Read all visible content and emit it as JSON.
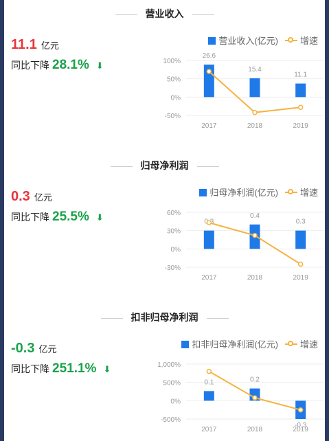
{
  "sections": [
    {
      "title": "营业收入",
      "value": "11.1",
      "unit": "亿元",
      "value_color": "#e8343c",
      "change_label": "同比下降",
      "change_pct": "28.1%",
      "legend_bar": "营业收入(亿元)",
      "legend_line": "增速",
      "chart_data": {
        "type": "bar",
        "categories": [
          "2017",
          "2018",
          "2019"
        ],
        "series": [
          {
            "name": "营业收入(亿元)",
            "type": "bar",
            "values": [
              26.6,
              15.4,
              11.1
            ],
            "labels": [
              "26.6",
              "15.4",
              "11.1"
            ]
          },
          {
            "name": "增速",
            "type": "line",
            "values": [
              70,
              -42,
              -28
            ]
          }
        ],
        "y_ticks": [
          "100%",
          "50%",
          "0%",
          "-50%"
        ],
        "ylim": [
          -50,
          100
        ],
        "bar_max": 30
      }
    },
    {
      "title": "归母净利润",
      "value": "0.3",
      "unit": "亿元",
      "value_color": "#e8343c",
      "change_label": "同比下降",
      "change_pct": "25.5%",
      "legend_bar": "归母净利润(亿元)",
      "legend_line": "增速",
      "chart_data": {
        "type": "bar",
        "categories": [
          "2017",
          "2018",
          "2019"
        ],
        "series": [
          {
            "name": "归母净利润(亿元)",
            "type": "bar",
            "values": [
              0.3,
              0.4,
              0.3
            ],
            "labels": [
              "0.3",
              "0.4",
              "0.3"
            ]
          },
          {
            "name": "增速",
            "type": "line",
            "values": [
              43,
              22,
              -25
            ]
          }
        ],
        "y_ticks": [
          "60%",
          "30%",
          "0%",
          "-30%"
        ],
        "ylim": [
          -30,
          60
        ],
        "bar_max": 0.6
      }
    },
    {
      "title": "扣非归母净利润",
      "value": "-0.3",
      "unit": "亿元",
      "value_color": "#1aa24a",
      "change_label": "同比下降",
      "change_pct": "251.1%",
      "legend_bar": "扣非归母净利润(亿元)",
      "legend_line": "增速",
      "chart_data": {
        "type": "bar",
        "categories": [
          "2017",
          "2018",
          "2019"
        ],
        "series": [
          {
            "name": "扣非归母净利润(亿元)",
            "type": "bar",
            "values": [
              0.1,
              0.2,
              -0.3
            ],
            "labels": [
              "0.1",
              "0.2",
              "-0.3"
            ]
          },
          {
            "name": "增速",
            "type": "line",
            "values": [
              800,
              80,
              -251
            ]
          }
        ],
        "y_ticks": [
          "1,000%",
          "500%",
          "0%",
          "-500%"
        ],
        "ylim": [
          -500,
          1000
        ],
        "bar_max": 0.6
      }
    }
  ],
  "colors": {
    "bar": "#1f7ae8",
    "line": "#f5b33e",
    "red": "#e8343c",
    "green": "#1aa24a"
  }
}
